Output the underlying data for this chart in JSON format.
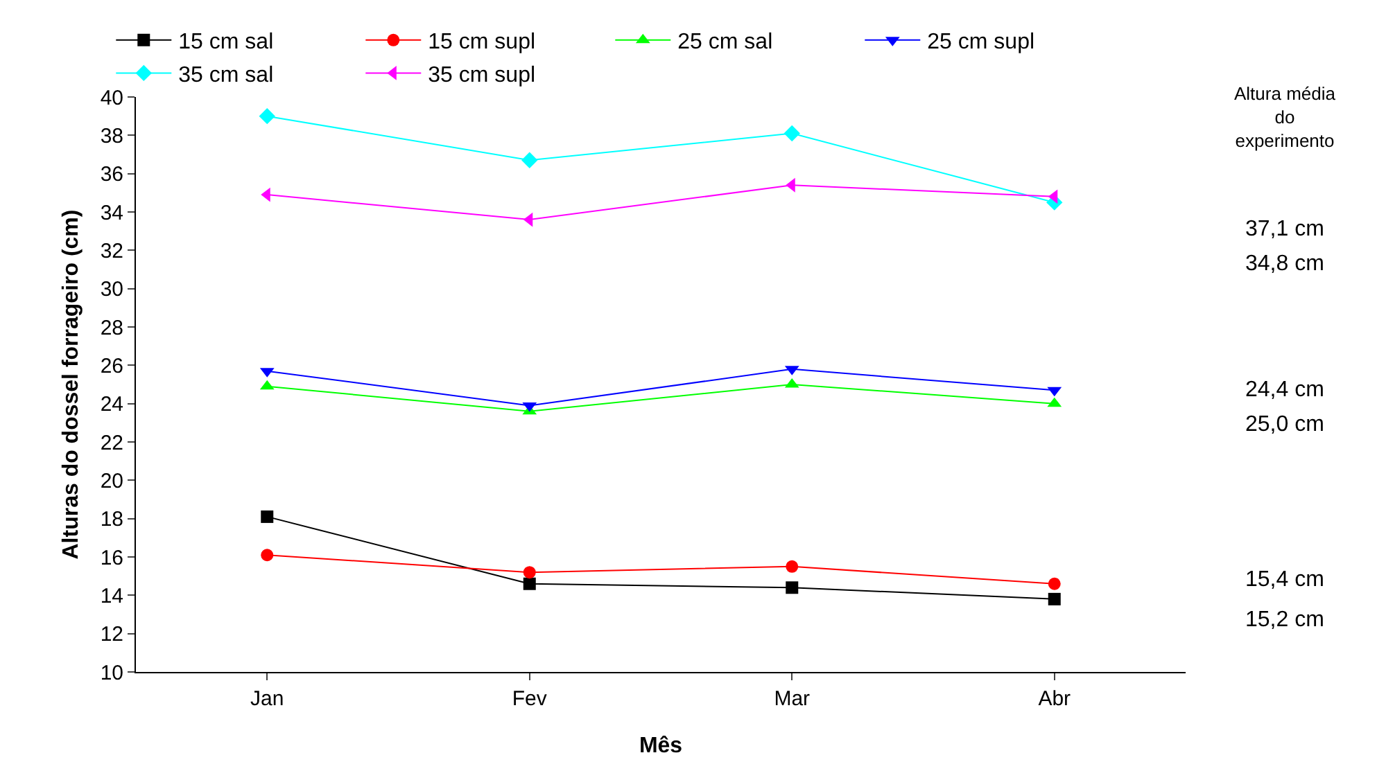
{
  "chart_data": {
    "type": "line",
    "xlabel": "Mês",
    "ylabel": "Alturas do dossel forrageiro (cm)",
    "categories": [
      "Jan",
      "Fev",
      "Mar",
      "Abr"
    ],
    "series": [
      {
        "name": "15 cm sal",
        "color": "#000000",
        "marker": "square",
        "values": [
          18.1,
          14.6,
          14.4,
          13.8
        ]
      },
      {
        "name": "15 cm supl",
        "color": "#ff0000",
        "marker": "circle",
        "values": [
          16.1,
          15.2,
          15.5,
          14.6
        ]
      },
      {
        "name": "25 cm sal",
        "color": "#00ff00",
        "marker": "triangle",
        "values": [
          24.9,
          23.6,
          25.0,
          24.0
        ]
      },
      {
        "name": "25 cm supl",
        "color": "#0000ff",
        "marker": "triangle-down",
        "values": [
          25.7,
          23.9,
          25.8,
          24.7
        ]
      },
      {
        "name": "35 cm sal",
        "color": "#00ffff",
        "marker": "diamond",
        "values": [
          39.0,
          36.7,
          38.1,
          34.5
        ]
      },
      {
        "name": "35 cm supl",
        "color": "#ff00ff",
        "marker": "triangle-left",
        "values": [
          34.9,
          33.6,
          35.4,
          34.8
        ]
      }
    ],
    "ylim": [
      10,
      40
    ],
    "yticks": [
      10,
      12,
      14,
      16,
      18,
      20,
      22,
      24,
      26,
      28,
      30,
      32,
      34,
      36,
      38,
      40
    ],
    "grid": false,
    "legend": "top",
    "line_style": "solid",
    "annotations": [
      "Altura média\ndo\nexperimento",
      "37,1 cm",
      "34,8 cm",
      "24,4 cm",
      "25,0 cm",
      "15,4 cm",
      "15,2 cm"
    ]
  }
}
